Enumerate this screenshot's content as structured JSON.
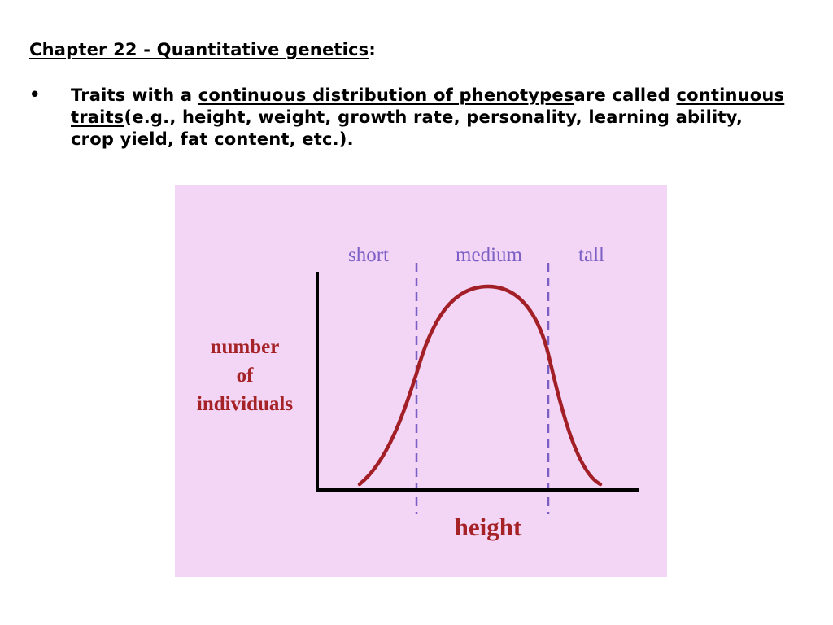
{
  "slide": {
    "heading": {
      "text": "Chapter 22 - Quantitative genetics",
      "suffix": ":"
    },
    "bullet": {
      "symbol": "•",
      "part1": "Traits with a ",
      "link1": "continuous distribution of phenotypes",
      "part2": "are called ",
      "link2": "continuous traits",
      "part3": "(e.g., height, weight, growth rate, personality, learning ability, crop yield, fat content, etc.)."
    }
  },
  "figure": {
    "background_color": "#f3d6f6",
    "curve_color": "#a31f27",
    "divider_color": "#7b5fc4",
    "axis_color": "#000000",
    "chart_data": {
      "type": "line",
      "title": "",
      "xlabel": "height",
      "ylabel": [
        "number",
        "of",
        "individuals"
      ],
      "category_labels": [
        "short",
        "medium",
        "tall"
      ],
      "dividers": [
        "short|medium",
        "medium|tall"
      ],
      "grid": false,
      "legend": "none"
    }
  }
}
